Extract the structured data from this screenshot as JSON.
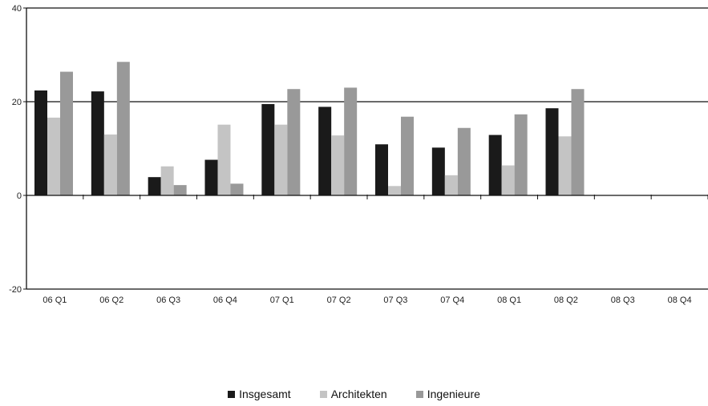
{
  "chart_data": {
    "type": "bar",
    "categories": [
      "06 Q1",
      "06 Q2",
      "06 Q3",
      "06 Q4",
      "07 Q1",
      "07 Q2",
      "07 Q3",
      "07 Q4",
      "08 Q1",
      "08 Q2",
      "08 Q3",
      "08 Q4"
    ],
    "series": [
      {
        "name": "Insgesamt",
        "color": "#1a1a1a",
        "values": [
          22.4,
          22.2,
          3.9,
          7.6,
          19.5,
          18.9,
          10.9,
          10.2,
          12.9,
          18.6,
          null,
          null
        ]
      },
      {
        "name": "Architekten",
        "color": "#c4c4c4",
        "values": [
          16.6,
          13.0,
          6.2,
          15.1,
          15.1,
          12.8,
          2.0,
          4.3,
          6.4,
          12.6,
          null,
          null
        ]
      },
      {
        "name": "Ingenieure",
        "color": "#999999",
        "values": [
          26.4,
          28.5,
          2.2,
          2.5,
          22.7,
          23.0,
          16.8,
          14.4,
          17.3,
          22.7,
          null,
          null
        ]
      }
    ],
    "ylim": [
      -20,
      40
    ],
    "yticks": [
      -20,
      0,
      20,
      40
    ],
    "grid": "horizontal at 20 and 40",
    "legend_position": "bottom-center",
    "title": "",
    "xlabel": "",
    "ylabel": ""
  }
}
